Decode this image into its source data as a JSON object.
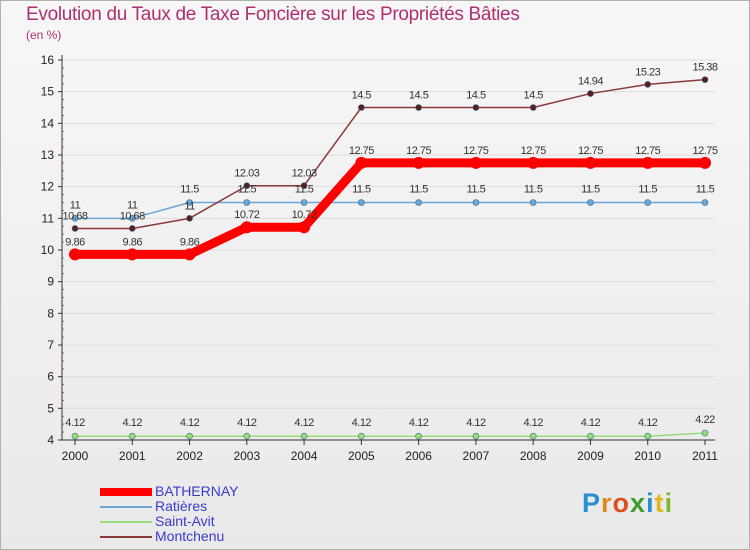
{
  "header": {
    "title": "Evolution du Taux de Taxe Foncière sur les Propriétés Bâties",
    "unit": "(en %)"
  },
  "brand": {
    "text": "Proxiti"
  },
  "colors": {
    "title": "#b0306e",
    "legend_text": "#3a3acd",
    "axis": "#333333",
    "grid": "#d8d8d8"
  },
  "chart_data": {
    "type": "line",
    "title": "Evolution du Taux de Taxe Foncière sur les Propriétés Bâties",
    "ylabel": "(en %)",
    "xlabel": "",
    "x": [
      "2000",
      "2001",
      "2002",
      "2003",
      "2004",
      "2005",
      "2006",
      "2007",
      "2008",
      "2009",
      "2010",
      "2011"
    ],
    "ylim": [
      4,
      16
    ],
    "yticks": [
      4,
      5,
      6,
      7,
      8,
      9,
      10,
      11,
      12,
      13,
      14,
      15,
      16
    ],
    "grid": true,
    "legend": "bottom-left",
    "series": [
      {
        "name": "BATHERNAY",
        "color": "#ff0000",
        "values": [
          9.86,
          9.86,
          9.86,
          10.72,
          10.72,
          12.75,
          12.75,
          12.75,
          12.75,
          12.75,
          12.75,
          12.75
        ],
        "labels": [
          "9.86",
          "9.86",
          "9.86",
          "10.72",
          "10.72",
          "12.75",
          "12.75",
          "12.75",
          "12.75",
          "12.75",
          "12.75",
          "12.75"
        ]
      },
      {
        "name": "Ratières",
        "color": "#6aa6d8",
        "values": [
          11,
          11,
          11.5,
          11.5,
          11.5,
          11.5,
          11.5,
          11.5,
          11.5,
          11.5,
          11.5,
          11.5
        ],
        "labels": [
          "11",
          "11",
          "11.5",
          "11.5",
          "11.5",
          "11.5",
          "11.5",
          "11.5",
          "11.5",
          "11.5",
          "11.5",
          "11.5"
        ]
      },
      {
        "name": "Saint-Avit",
        "color": "#99dd77",
        "values": [
          4.12,
          4.12,
          4.12,
          4.12,
          4.12,
          4.12,
          4.12,
          4.12,
          4.12,
          4.12,
          4.12,
          4.22
        ],
        "labels": [
          "4.12",
          "4.12",
          "4.12",
          "4.12",
          "4.12",
          "4.12",
          "4.12",
          "4.12",
          "4.12",
          "4.12",
          "4.12",
          "4.22"
        ]
      },
      {
        "name": "Montchenu",
        "color": "#8b3a3a",
        "values": [
          10.68,
          10.68,
          11,
          12.03,
          12.03,
          14.5,
          14.5,
          14.5,
          14.5,
          14.94,
          15.23,
          15.38
        ],
        "labels": [
          "10.68",
          "10.68",
          "11",
          "12.03",
          "12.03",
          "14.5",
          "14.5",
          "14.5",
          "14.5",
          "14.94",
          "15.23",
          "15.38"
        ]
      }
    ]
  }
}
